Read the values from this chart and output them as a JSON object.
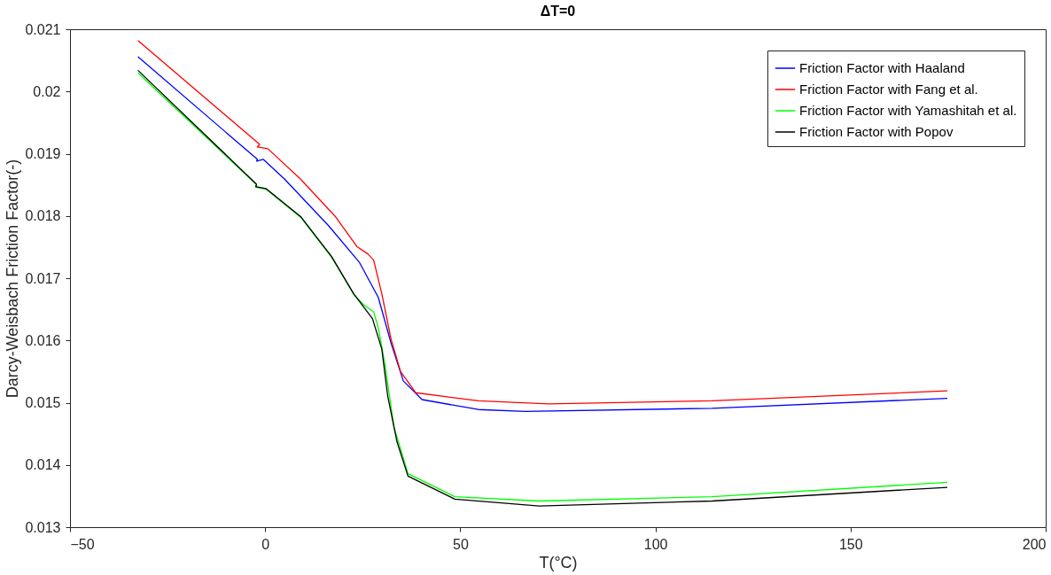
{
  "chart_data": {
    "type": "line",
    "title": "ΔT=0",
    "xlabel": "T(°C)",
    "ylabel": "Darcy-Weisbach Friction Factor(-)",
    "xlim": [
      -50,
      200
    ],
    "xticks": [
      -50,
      0,
      50,
      100,
      150,
      200
    ],
    "ylim": [
      0.013,
      0.021
    ],
    "yticks": [
      0.013,
      0.014,
      0.015,
      0.016,
      0.017,
      0.018,
      0.019,
      0.02,
      0.021
    ],
    "grid": false,
    "legend": "top right",
    "marker": "none",
    "line_style": "solid",
    "series": [
      {
        "name": "Friction Factor with Haaland",
        "color": "#0000ff",
        "x": [
          -32.6,
          -2,
          -2.2,
          -0.5,
          5,
          16.3,
          24.2,
          29,
          32.3,
          35.4,
          40.2,
          54.6,
          66.6,
          114.5,
          174.8
        ],
        "values": [
          0.02056,
          0.01891,
          0.01888,
          0.01891,
          0.01859,
          0.01784,
          0.01725,
          0.01669,
          0.01595,
          0.01535,
          0.01505,
          0.01489,
          0.01486,
          0.01491,
          0.01507
        ]
      },
      {
        "name": "Friction Factor with Fang et al.",
        "color": "#ff0000",
        "x": [
          -32.6,
          -1.4,
          -2,
          0.7,
          9.1,
          18,
          23.5,
          26.3,
          27.8,
          29.9,
          32.3,
          34.7,
          38.6,
          54.6,
          72.6,
          114.5,
          174.8
        ],
        "values": [
          0.02082,
          0.01915,
          0.01911,
          0.01908,
          0.01859,
          0.01799,
          0.01751,
          0.01739,
          0.01729,
          0.01675,
          0.01601,
          0.0155,
          0.01516,
          0.01503,
          0.01498,
          0.01503,
          0.01519
        ]
      },
      {
        "name": "Friction Factor with Yamashitah et al.",
        "color": "#00ff00",
        "x": [
          -32.6,
          -2.2,
          -2.4,
          0.2,
          9.1,
          17,
          22.7,
          25.1,
          27.8,
          29,
          30.7,
          33,
          36.6,
          48.6,
          70.2,
          114.5,
          174.8
        ],
        "values": [
          0.0203,
          0.0185,
          0.01846,
          0.01843,
          0.01798,
          0.01734,
          0.01674,
          0.01658,
          0.01646,
          0.0162,
          0.01561,
          0.01461,
          0.01386,
          0.01349,
          0.01342,
          0.01349,
          0.01372
        ]
      },
      {
        "name": "Friction Factor with Popov",
        "color": "#000000",
        "x": [
          -32.6,
          -2.2,
          -2.4,
          0.2,
          9.1,
          17,
          22.7,
          27.5,
          29.9,
          31.4,
          33.8,
          36.6,
          48.6,
          70.2,
          114.5,
          174.8
        ],
        "values": [
          0.02034,
          0.01851,
          0.01847,
          0.01844,
          0.01799,
          0.01735,
          0.01675,
          0.01635,
          0.01586,
          0.01511,
          0.01437,
          0.01382,
          0.01345,
          0.01334,
          0.01342,
          0.01364
        ]
      }
    ]
  }
}
